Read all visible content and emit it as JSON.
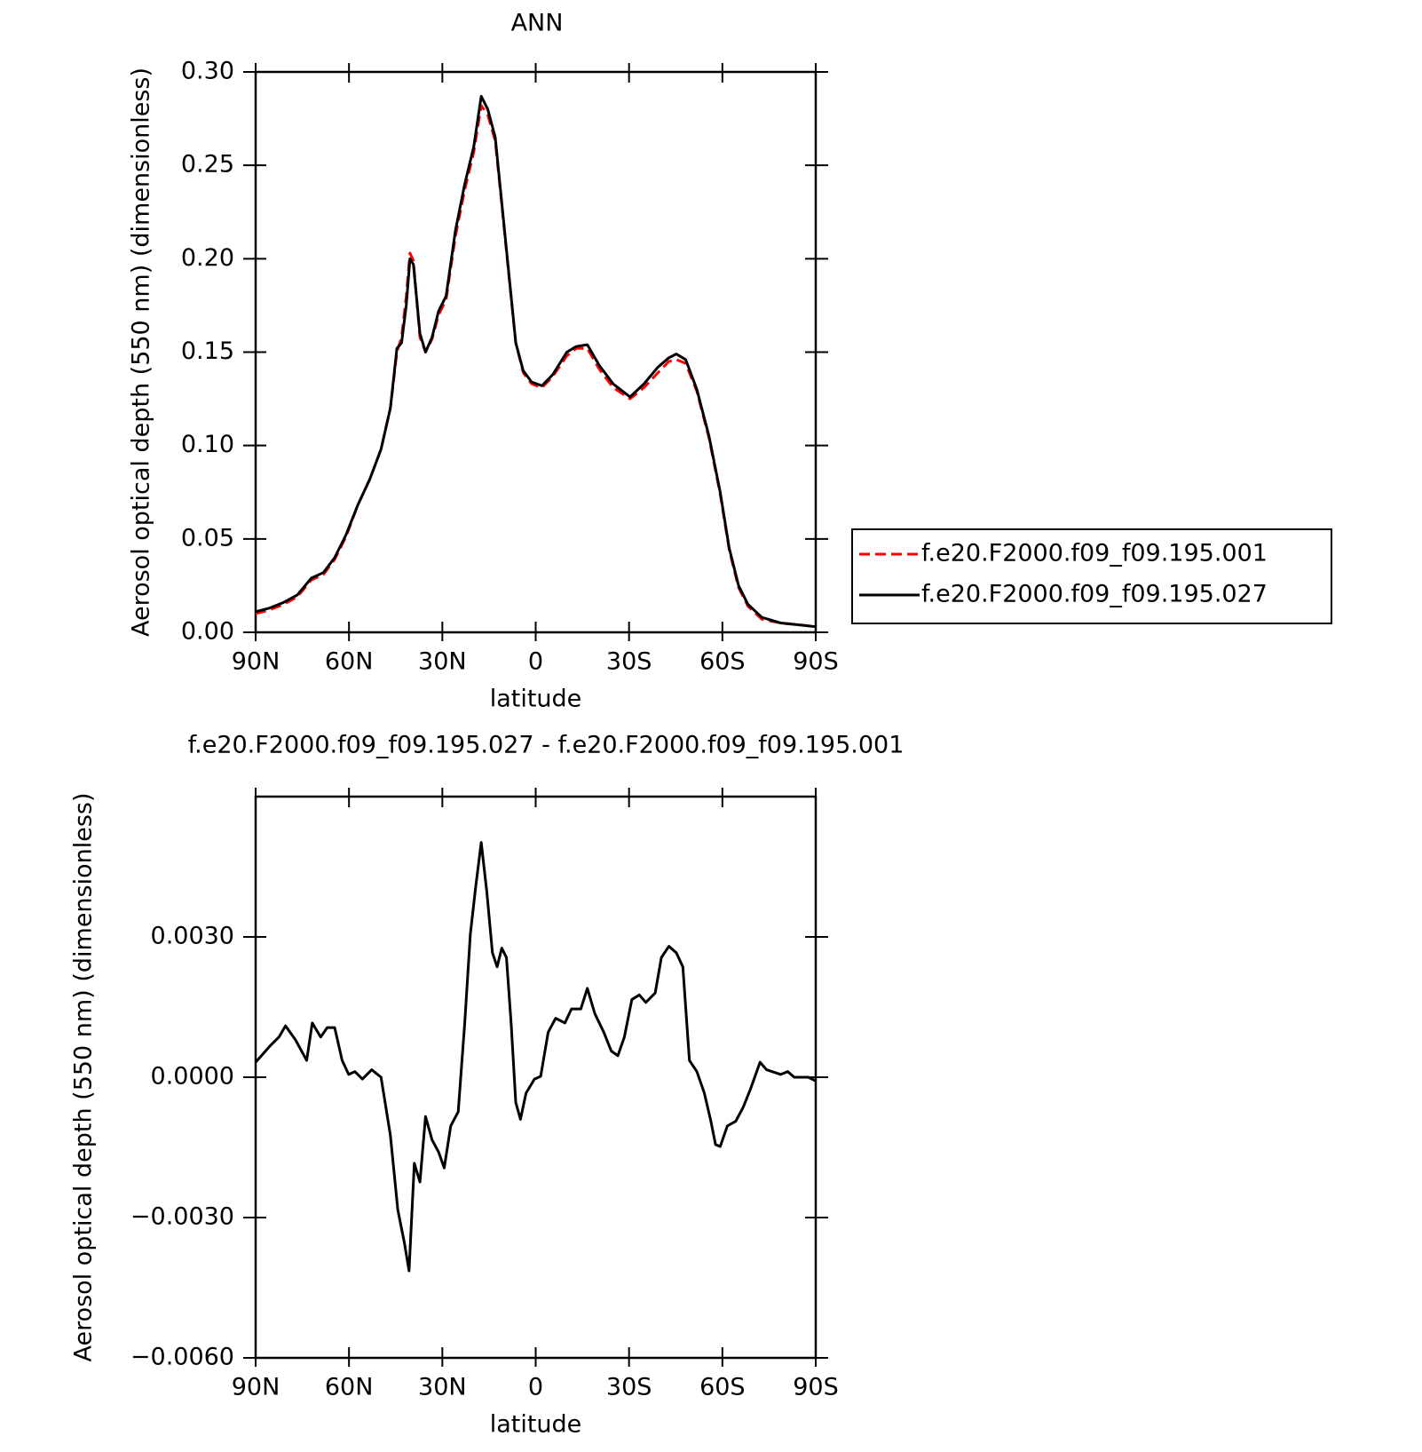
{
  "chart_data": [
    {
      "type": "line",
      "title": "ANN",
      "xlabel": "latitude",
      "ylabel": "Aerosol optical depth (550 nm) (dimensionless)",
      "legend": "outside-right",
      "x": [
        90,
        85.5,
        81,
        76.6,
        72.1,
        68.2,
        64.6,
        61,
        57.2,
        53.3,
        49.7,
        46.7,
        44.6,
        43.1,
        41.6,
        40.4,
        39.3,
        37.2,
        35.4,
        33.3,
        31.2,
        28.8,
        25.8,
        22.8,
        19.9,
        17.5,
        15.4,
        13,
        10.9,
        8.5,
        6.4,
        4,
        1.3,
        -2,
        -5.5,
        -10,
        -13,
        -16.6,
        -20.4,
        -24.9,
        -30.3,
        -34.8,
        -39.3,
        -42.8,
        -45.2,
        -48.2,
        -51.8,
        -55.7,
        -59.3,
        -62.2,
        -65.2,
        -68.2,
        -72.7,
        -78.7,
        -84.6,
        -90
      ],
      "series": [
        {
          "name": "f.e20.F2000.f09_f09.195.001",
          "color": "#ff0000",
          "line_style": "dashed",
          "values": [
            0.01,
            0.012,
            0.015,
            0.019,
            0.028,
            0.031,
            0.039,
            0.051,
            0.068,
            0.082,
            0.098,
            0.12,
            0.15,
            0.158,
            0.18,
            0.203,
            0.199,
            0.158,
            0.15,
            0.157,
            0.17,
            0.178,
            0.212,
            0.237,
            0.257,
            0.282,
            0.277,
            0.263,
            0.229,
            0.189,
            0.155,
            0.139,
            0.133,
            0.131,
            0.137,
            0.148,
            0.152,
            0.152,
            0.141,
            0.131,
            0.125,
            0.131,
            0.139,
            0.145,
            0.146,
            0.144,
            0.129,
            0.104,
            0.074,
            0.044,
            0.024,
            0.014,
            0.007,
            0.005,
            0.004,
            0.003
          ]
        },
        {
          "name": "f.e20.F2000.f09_f09.195.027",
          "color": "#000000",
          "line_style": "solid",
          "values": [
            0.011,
            0.013,
            0.016,
            0.02,
            0.029,
            0.032,
            0.04,
            0.052,
            0.068,
            0.082,
            0.098,
            0.12,
            0.152,
            0.155,
            0.175,
            0.2,
            0.197,
            0.16,
            0.15,
            0.158,
            0.172,
            0.18,
            0.215,
            0.24,
            0.26,
            0.287,
            0.28,
            0.265,
            0.23,
            0.19,
            0.155,
            0.14,
            0.134,
            0.132,
            0.138,
            0.15,
            0.153,
            0.154,
            0.143,
            0.133,
            0.126,
            0.133,
            0.142,
            0.147,
            0.149,
            0.146,
            0.13,
            0.105,
            0.075,
            0.045,
            0.025,
            0.015,
            0.008,
            0.005,
            0.004,
            0.003
          ]
        }
      ],
      "xlim": [
        90,
        -90
      ],
      "xticks": [
        {
          "value": 90,
          "label": "90N"
        },
        {
          "value": 60,
          "label": "60N"
        },
        {
          "value": 30,
          "label": "30N"
        },
        0,
        {
          "value": -30,
          "label": "30S"
        },
        {
          "value": -60,
          "label": "60S"
        },
        {
          "value": -90,
          "label": "90S"
        }
      ],
      "ylim": [
        0,
        0.3
      ],
      "yticks": [
        {
          "value": 0,
          "label": "0.00"
        },
        {
          "value": 0.05,
          "label": "0.05"
        },
        {
          "value": 0.1,
          "label": "0.10"
        },
        {
          "value": 0.15,
          "label": "0.15"
        },
        {
          "value": 0.2,
          "label": "0.20"
        },
        {
          "value": 0.25,
          "label": "0.25"
        },
        {
          "value": 0.3,
          "label": "0.30"
        }
      ]
    },
    {
      "type": "line",
      "title": "f.e20.F2000.f09_f09.195.027 - f.e20.F2000.f09_f09.195.001",
      "xlabel": "latitude",
      "ylabel": "Aerosol optical depth (550 nm) (dimensionless)",
      "x": [
        90,
        85.5,
        82.5,
        80.4,
        77.2,
        73.6,
        71.8,
        69.1,
        67,
        64.6,
        62.2,
        60.1,
        58.1,
        55.7,
        52.7,
        49.7,
        46.7,
        44.3,
        42.2,
        40.7,
        39,
        37.2,
        35.4,
        33.3,
        31.2,
        29.4,
        27.3,
        24.9,
        22.8,
        21,
        19.3,
        17.5,
        15.7,
        13.9,
        12.4,
        10.9,
        9.4,
        7.9,
        6.4,
        4.9,
        3.1,
        0.4,
        -1.6,
        -4,
        -6.4,
        -9.4,
        -11.5,
        -14.5,
        -16.6,
        -19,
        -21.9,
        -24.3,
        -26.4,
        -28.5,
        -30.9,
        -33.3,
        -35.4,
        -38.4,
        -40.4,
        -42.8,
        -45.2,
        -47.3,
        -49.4,
        -51.8,
        -54.2,
        -56.3,
        -57.8,
        -59.3,
        -61.6,
        -64.3,
        -66.7,
        -69.1,
        -72.1,
        -74.2,
        -78.7,
        -81,
        -83.1,
        -87.6,
        -90
      ],
      "series": [
        {
          "name": "f.e20.F2000.f09_f09.195.027 - f.e20.F2000.f09_f09.195.001",
          "color": "#000000",
          "line_style": "solid",
          "values": [
            0.00032,
            0.00066,
            0.00086,
            0.0011,
            0.0008,
            0.00036,
            0.00116,
            0.00086,
            0.00106,
            0.00106,
            0.00036,
            6e-05,
            0.00012,
            -4e-05,
            0.00016,
            0,
            -0.00124,
            -0.00284,
            -0.00354,
            -0.00414,
            -0.00184,
            -0.00224,
            -0.00084,
            -0.00134,
            -0.0016,
            -0.00194,
            -0.00104,
            -0.00074,
            0.00116,
            0.00306,
            0.00406,
            0.00502,
            0.00396,
            0.00266,
            0.00236,
            0.00276,
            0.00256,
            0.00116,
            -0.00054,
            -0.0009,
            -0.00034,
            -4e-05,
            2e-05,
            0.00096,
            0.00126,
            0.00116,
            0.00146,
            0.00146,
            0.0019,
            0.00136,
            0.00096,
            0.00056,
            0.00046,
            0.00086,
            0.00166,
            0.00176,
            0.0016,
            0.0018,
            0.00256,
            0.0028,
            0.00266,
            0.00236,
            0.00036,
            0.00012,
            -0.00034,
            -0.00094,
            -0.00144,
            -0.00148,
            -0.00104,
            -0.00094,
            -0.00064,
            -0.00024,
            0.00032,
            0.00016,
            6e-05,
            0.00012,
            0,
            0,
            -8e-05
          ]
        }
      ],
      "xlim": [
        90,
        -90
      ],
      "xticks": [
        {
          "value": 90,
          "label": "90N"
        },
        {
          "value": 60,
          "label": "60N"
        },
        {
          "value": 30,
          "label": "30N"
        },
        0,
        {
          "value": -30,
          "label": "30S"
        },
        {
          "value": -60,
          "label": "60S"
        },
        {
          "value": -90,
          "label": "90S"
        }
      ],
      "ylim": [
        -0.006,
        0.006
      ],
      "yticks": [
        {
          "value": -0.006,
          "label": "−0.0060"
        },
        {
          "value": -0.003,
          "label": "−0.0030"
        },
        {
          "value": 0,
          "label": "0.0000"
        },
        {
          "value": 0.003,
          "label": "0.0030"
        }
      ]
    }
  ]
}
